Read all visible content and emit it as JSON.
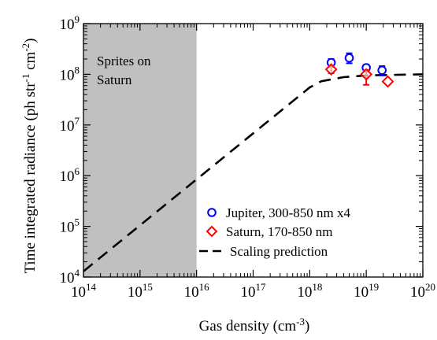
{
  "chart_data": {
    "type": "scatter",
    "x_scale": "log",
    "y_scale": "log",
    "xlim": [
      100000000000000.0,
      1e+20
    ],
    "ylim": [
      10000.0,
      1000000000.0
    ],
    "xlabel": {
      "pre": "Gas density (cm",
      "sup": "-3",
      "post": ")"
    },
    "ylabel": {
      "p1": "Time integrated radiance (ph str",
      "s1": "-1",
      "p2": " cm",
      "s2": "-2",
      "p3": ")"
    },
    "x_ticks": [
      {
        "value": 100000000000000.0,
        "base": "10",
        "exp": "14"
      },
      {
        "value": 1000000000000000.0,
        "base": "10",
        "exp": "15"
      },
      {
        "value": 1e+16,
        "base": "10",
        "exp": "16"
      },
      {
        "value": 1e+17,
        "base": "10",
        "exp": "17"
      },
      {
        "value": 1e+18,
        "base": "10",
        "exp": "18"
      },
      {
        "value": 1e+19,
        "base": "10",
        "exp": "19"
      },
      {
        "value": 1e+20,
        "base": "10",
        "exp": "20"
      }
    ],
    "y_ticks": [
      {
        "value": 10000.0,
        "base": "10",
        "exp": "4"
      },
      {
        "value": 100000.0,
        "base": "10",
        "exp": "5"
      },
      {
        "value": 1000000.0,
        "base": "10",
        "exp": "6"
      },
      {
        "value": 10000000.0,
        "base": "10",
        "exp": "7"
      },
      {
        "value": 100000000.0,
        "base": "10",
        "exp": "8"
      },
      {
        "value": 1000000000.0,
        "base": "10",
        "exp": "9"
      }
    ],
    "shaded_region": {
      "x_range": [
        100000000000000.0,
        1e+16
      ],
      "y_range": [
        10000.0,
        1000000000.0
      ],
      "color": "#c0c0c0",
      "label_lines": [
        "Sprites on",
        "Saturn"
      ]
    },
    "series": [
      {
        "name": "Jupiter, 300-850 nm x4",
        "marker": "circle",
        "color": "#0000ff",
        "points": [
          {
            "x": 2.4e+18,
            "y": 170000000.0,
            "err_low": 140000000.0,
            "err_high": 200000000.0
          },
          {
            "x": 5e+18,
            "y": 210000000.0,
            "err_low": 165000000.0,
            "err_high": 260000000.0
          },
          {
            "x": 1e+19,
            "y": 135000000.0,
            "err_low": 115000000.0,
            "err_high": 155000000.0
          },
          {
            "x": 1.9e+19,
            "y": 120000000.0,
            "err_low": 95000000.0,
            "err_high": 145000000.0
          }
        ]
      },
      {
        "name": "Saturn, 170-850 nm",
        "marker": "diamond",
        "color": "#ff0000",
        "points": [
          {
            "x": 2.4e+18,
            "y": 125000000.0,
            "err_low": 105000000.0,
            "err_high": 145000000.0
          },
          {
            "x": 1e+19,
            "y": 100000000.0,
            "err_low": 62000000.0,
            "err_high": 120000000.0
          },
          {
            "x": 2.4e+19,
            "y": 72000000.0
          }
        ]
      }
    ],
    "prediction": {
      "name": "Scaling prediction",
      "style": "dashed",
      "color": "#000000",
      "points": [
        {
          "x": 100000000000000.0,
          "y": 13000.0
        },
        {
          "x": 1e+18,
          "y": 55000000.0
        },
        {
          "x": 1.6e+18,
          "y": 73000000.0
        },
        {
          "x": 4e+18,
          "y": 88000000.0
        },
        {
          "x": 1e+19,
          "y": 95000000.0
        },
        {
          "x": 1e+20,
          "y": 100000000.0
        }
      ]
    },
    "legend_position": "lower-right",
    "grid": false
  }
}
